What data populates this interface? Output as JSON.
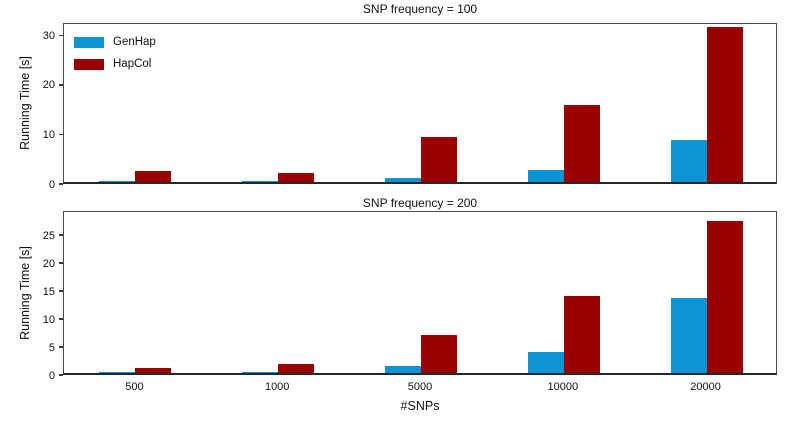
{
  "figure": {
    "y_axis_label": "Running Time [s]",
    "x_axis_label": "#SNPs",
    "background_color": "#ffffff",
    "spine_color": "#4a4a4a",
    "legend": [
      {
        "label": "GenHap",
        "color": "#0d94d4"
      },
      {
        "label": "HapCol",
        "color": "#9b0000"
      }
    ]
  },
  "chart_data": [
    {
      "type": "bar",
      "title": "SNP frequency = 100",
      "categories": [
        "500",
        "1000",
        "5000",
        "10000",
        "20000"
      ],
      "series": [
        {
          "name": "GenHap",
          "color": "#0d94d4",
          "values": [
            0.3,
            0.3,
            0.9,
            2.5,
            8.4
          ]
        },
        {
          "name": "HapCol",
          "color": "#9b0000",
          "values": [
            2.3,
            1.9,
            9.0,
            15.5,
            31.3
          ]
        }
      ],
      "xlabel": "",
      "ylabel": "Running Time [s]",
      "yticks": [
        0,
        10,
        20,
        30
      ],
      "ylim": [
        0,
        32.5
      ],
      "show_x_tick_labels": false,
      "legend_position": "upper left",
      "grid": false
    },
    {
      "type": "bar",
      "title": "SNP frequency = 200",
      "categories": [
        "500",
        "1000",
        "5000",
        "10000",
        "20000"
      ],
      "series": [
        {
          "name": "GenHap",
          "color": "#0d94d4",
          "values": [
            0.2,
            0.2,
            1.2,
            3.8,
            13.4
          ]
        },
        {
          "name": "HapCol",
          "color": "#9b0000",
          "values": [
            0.9,
            1.6,
            6.8,
            13.8,
            27.1
          ]
        }
      ],
      "xlabel": "#SNPs",
      "ylabel": "Running Time [s]",
      "yticks": [
        0,
        5,
        10,
        15,
        20,
        25
      ],
      "ylim": [
        0,
        29.3
      ],
      "show_x_tick_labels": true,
      "legend_position": "none",
      "grid": false
    }
  ]
}
